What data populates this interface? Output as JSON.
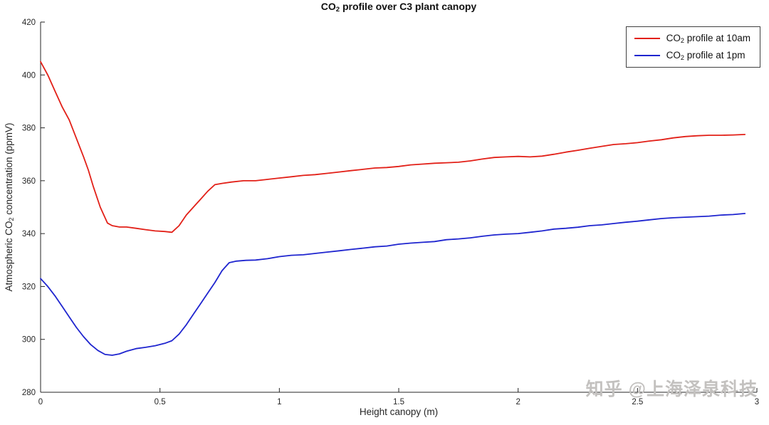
{
  "title": {
    "pre": "CO",
    "sub": "2",
    "post": " profile over C3 plant canopy"
  },
  "axes": {
    "x_label": "Height canopy (m)",
    "y_label": {
      "pre": "Atmospheric CO",
      "sub": "2",
      "post": " concentration (ppmV)"
    }
  },
  "legend": {
    "entries": [
      {
        "pre": "CO",
        "sub": "2",
        "post": " profile at 10am"
      },
      {
        "pre": "CO",
        "sub": "2",
        "post": " profile at 1pm"
      }
    ]
  },
  "watermark": "知乎 @上海泽泉科技",
  "chart_data": {
    "type": "line",
    "title": "CO2 profile over C3 plant canopy",
    "xlabel": "Height canopy (m)",
    "ylabel": "Atmospheric CO2 concentration (ppmV)",
    "xlim": [
      0,
      3
    ],
    "ylim": [
      280,
      420
    ],
    "xticks": [
      0,
      0.5,
      1,
      1.5,
      2,
      2.5,
      3
    ],
    "xtick_labels": [
      "0",
      "0.5",
      "1",
      "1.5",
      "2",
      "2.5",
      "3"
    ],
    "yticks": [
      280,
      300,
      320,
      340,
      360,
      380,
      400,
      420
    ],
    "ytick_labels": [
      "280",
      "300",
      "320",
      "340",
      "360",
      "380",
      "400",
      "420"
    ],
    "grid": false,
    "legend_position": "top-right",
    "series": [
      {
        "name": "CO2 profile at 10am",
        "color": "#e22018",
        "points": [
          [
            0,
            405
          ],
          [
            0.03,
            400
          ],
          [
            0.06,
            394
          ],
          [
            0.09,
            388
          ],
          [
            0.12,
            383
          ],
          [
            0.15,
            376
          ],
          [
            0.18,
            369
          ],
          [
            0.2,
            364
          ],
          [
            0.22,
            358
          ],
          [
            0.25,
            350
          ],
          [
            0.28,
            344
          ],
          [
            0.3,
            343
          ],
          [
            0.33,
            342.5
          ],
          [
            0.36,
            342.5
          ],
          [
            0.4,
            342
          ],
          [
            0.44,
            341.5
          ],
          [
            0.48,
            341
          ],
          [
            0.52,
            340.8
          ],
          [
            0.55,
            340.5
          ],
          [
            0.58,
            343
          ],
          [
            0.61,
            347
          ],
          [
            0.64,
            350
          ],
          [
            0.67,
            353
          ],
          [
            0.7,
            356
          ],
          [
            0.73,
            358.5
          ],
          [
            0.76,
            359
          ],
          [
            0.8,
            359.5
          ],
          [
            0.85,
            360
          ],
          [
            0.9,
            360
          ],
          [
            0.95,
            360.5
          ],
          [
            1.0,
            361
          ],
          [
            1.05,
            361.5
          ],
          [
            1.1,
            362
          ],
          [
            1.15,
            362.3
          ],
          [
            1.2,
            362.8
          ],
          [
            1.25,
            363.3
          ],
          [
            1.3,
            363.8
          ],
          [
            1.35,
            364.3
          ],
          [
            1.4,
            364.8
          ],
          [
            1.45,
            365
          ],
          [
            1.5,
            365.4
          ],
          [
            1.55,
            366
          ],
          [
            1.6,
            366.3
          ],
          [
            1.65,
            366.6
          ],
          [
            1.7,
            366.8
          ],
          [
            1.75,
            367
          ],
          [
            1.8,
            367.5
          ],
          [
            1.85,
            368.2
          ],
          [
            1.9,
            368.8
          ],
          [
            1.95,
            369
          ],
          [
            2.0,
            369.2
          ],
          [
            2.05,
            369
          ],
          [
            2.1,
            369.3
          ],
          [
            2.15,
            370
          ],
          [
            2.2,
            370.8
          ],
          [
            2.25,
            371.5
          ],
          [
            2.3,
            372.3
          ],
          [
            2.35,
            373
          ],
          [
            2.4,
            373.7
          ],
          [
            2.45,
            374
          ],
          [
            2.5,
            374.4
          ],
          [
            2.55,
            375
          ],
          [
            2.6,
            375.5
          ],
          [
            2.65,
            376.2
          ],
          [
            2.7,
            376.7
          ],
          [
            2.75,
            377
          ],
          [
            2.8,
            377.2
          ],
          [
            2.85,
            377.2
          ],
          [
            2.9,
            377.3
          ],
          [
            2.95,
            377.5
          ]
        ]
      },
      {
        "name": "CO2 profile at 1pm",
        "color": "#1f25cf",
        "points": [
          [
            0,
            323
          ],
          [
            0.03,
            320
          ],
          [
            0.06,
            316.5
          ],
          [
            0.09,
            312.5
          ],
          [
            0.12,
            308.5
          ],
          [
            0.15,
            304.5
          ],
          [
            0.18,
            301
          ],
          [
            0.21,
            298
          ],
          [
            0.24,
            295.8
          ],
          [
            0.27,
            294.3
          ],
          [
            0.3,
            294
          ],
          [
            0.33,
            294.5
          ],
          [
            0.36,
            295.5
          ],
          [
            0.4,
            296.5
          ],
          [
            0.44,
            297
          ],
          [
            0.48,
            297.6
          ],
          [
            0.52,
            298.5
          ],
          [
            0.55,
            299.5
          ],
          [
            0.58,
            302
          ],
          [
            0.61,
            305.5
          ],
          [
            0.64,
            309.5
          ],
          [
            0.67,
            313.5
          ],
          [
            0.7,
            317.5
          ],
          [
            0.73,
            321.5
          ],
          [
            0.76,
            326
          ],
          [
            0.79,
            329
          ],
          [
            0.82,
            329.6
          ],
          [
            0.86,
            329.9
          ],
          [
            0.9,
            330
          ],
          [
            0.95,
            330.5
          ],
          [
            1.0,
            331.3
          ],
          [
            1.05,
            331.8
          ],
          [
            1.1,
            332
          ],
          [
            1.15,
            332.5
          ],
          [
            1.2,
            333
          ],
          [
            1.25,
            333.5
          ],
          [
            1.3,
            334
          ],
          [
            1.35,
            334.5
          ],
          [
            1.4,
            335
          ],
          [
            1.45,
            335.3
          ],
          [
            1.5,
            336
          ],
          [
            1.55,
            336.4
          ],
          [
            1.6,
            336.7
          ],
          [
            1.65,
            337
          ],
          [
            1.7,
            337.7
          ],
          [
            1.75,
            338
          ],
          [
            1.8,
            338.4
          ],
          [
            1.85,
            339
          ],
          [
            1.9,
            339.5
          ],
          [
            1.95,
            339.8
          ],
          [
            2.0,
            340
          ],
          [
            2.05,
            340.5
          ],
          [
            2.1,
            341
          ],
          [
            2.15,
            341.7
          ],
          [
            2.2,
            342
          ],
          [
            2.25,
            342.4
          ],
          [
            2.3,
            343
          ],
          [
            2.35,
            343.3
          ],
          [
            2.4,
            343.8
          ],
          [
            2.45,
            344.3
          ],
          [
            2.5,
            344.7
          ],
          [
            2.55,
            345.2
          ],
          [
            2.6,
            345.7
          ],
          [
            2.65,
            346
          ],
          [
            2.7,
            346.2
          ],
          [
            2.75,
            346.4
          ],
          [
            2.8,
            346.6
          ],
          [
            2.85,
            347
          ],
          [
            2.9,
            347.2
          ],
          [
            2.95,
            347.6
          ]
        ]
      }
    ]
  }
}
